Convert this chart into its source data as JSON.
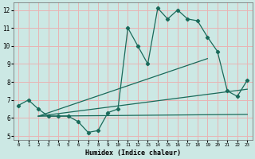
{
  "xlabel": "Humidex (Indice chaleur)",
  "ylabel": "",
  "xlim": [
    -0.5,
    23.5
  ],
  "ylim": [
    4.8,
    12.4
  ],
  "xticks": [
    0,
    1,
    2,
    3,
    4,
    5,
    6,
    7,
    8,
    9,
    10,
    11,
    12,
    13,
    14,
    15,
    16,
    17,
    18,
    19,
    20,
    21,
    22,
    23
  ],
  "yticks": [
    5,
    6,
    7,
    8,
    9,
    10,
    11,
    12
  ],
  "bg_color": "#cce8e4",
  "grid_color": "#e8b4b4",
  "line_color": "#1a6a5a",
  "line1": [
    6.7,
    7.0,
    6.5,
    6.1,
    6.1,
    6.1,
    5.8,
    5.2,
    5.3,
    6.3,
    6.5,
    11.0,
    10.0,
    9.0,
    12.1,
    11.5,
    12.0,
    11.5,
    11.4,
    10.5,
    9.7,
    7.5,
    7.2,
    8.1
  ],
  "line2_x": [
    2,
    23
  ],
  "line2_y": [
    6.1,
    6.2
  ],
  "line3_x": [
    2,
    23
  ],
  "line3_y": [
    6.1,
    7.6
  ],
  "line4_x": [
    2,
    19
  ],
  "line4_y": [
    6.1,
    9.3
  ],
  "figsize": [
    3.2,
    2.0
  ],
  "dpi": 100
}
